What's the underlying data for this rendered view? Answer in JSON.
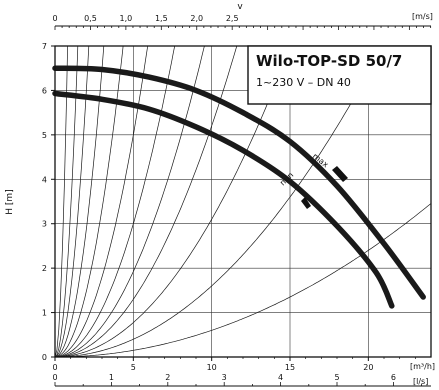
{
  "chart_data": {
    "type": "line",
    "title": "Wilo-TOP-SD 50/7",
    "subtitle": "1~230 V – DN 40",
    "ylabel": "H [m]",
    "ylim": [
      0,
      7
    ],
    "yticks": [
      "0",
      "1",
      "2",
      "3",
      "4",
      "5",
      "6",
      "7"
    ],
    "xlim": [
      0,
      24
    ],
    "x_primary": {
      "unit": "[m³/h]",
      "ticks": [
        "0",
        "5",
        "10",
        "15",
        "20"
      ]
    },
    "x_secondary": {
      "unit": "[l/s]",
      "ticks": [
        "0",
        "1",
        "2",
        "3",
        "4",
        "5",
        "6"
      ]
    },
    "x_velocity": {
      "label": "v",
      "unit": "[m/s]",
      "ticks": [
        "0",
        "0,5",
        "1,0",
        "1,5",
        "2,0",
        "2,5"
      ]
    },
    "grid": true,
    "series": [
      {
        "name": "max",
        "x": [
          0,
          3,
          6,
          9,
          12,
          15,
          18,
          21,
          23.5
        ],
        "y": [
          6.5,
          6.47,
          6.3,
          6.0,
          5.5,
          4.85,
          3.85,
          2.55,
          1.35
        ]
      },
      {
        "name": "min",
        "x": [
          0,
          3,
          6,
          9,
          12,
          15,
          18,
          20.5,
          21.5
        ],
        "y": [
          5.93,
          5.8,
          5.58,
          5.18,
          4.65,
          3.95,
          2.95,
          1.9,
          1.15
        ]
      }
    ],
    "system_curves_k": [
      10.8,
      3.3,
      1.5,
      0.72,
      0.37,
      0.2,
      0.12,
      0.077,
      0.052,
      0.031,
      0.016,
      0.006
    ],
    "colors": {
      "curves": "#1a1a1a",
      "grid": "#333333",
      "background": "#ffffff"
    }
  }
}
